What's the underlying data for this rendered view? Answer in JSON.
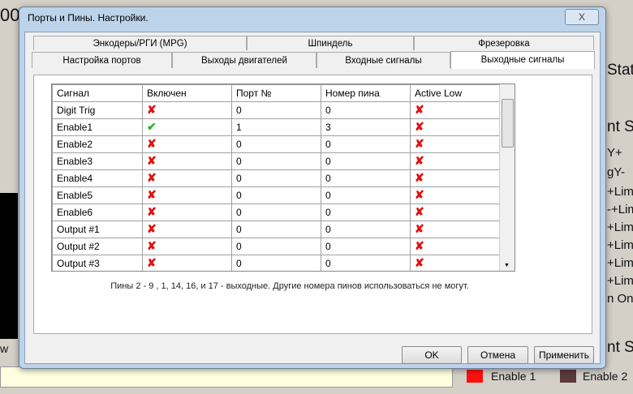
{
  "background": {
    "left_fragment": "00",
    "right_labels": [
      "Stat",
      "nt St",
      "Y+",
      "gY-",
      "+Lim",
      "-+Lim",
      "+Lim",
      "+Lim",
      "+Lim",
      "+Lim",
      "n On",
      "nt St"
    ],
    "left_button": "w",
    "leds": [
      {
        "label": "Enable 1",
        "color": "#ff1010"
      },
      {
        "label": "Enable 2",
        "color": "#5a3a3a"
      }
    ]
  },
  "dialog": {
    "title": "Порты и Пины.  Настройки.",
    "close": "X",
    "tabs_row1": [
      "Энкодеры/РГИ (MPG)",
      "Шпиндель",
      "Фрезеровка"
    ],
    "tabs_row2": [
      "Настройка портов",
      "Выходы двигателей",
      "Входные сигналы",
      "Выходные сигналы"
    ],
    "active_tab": "Выходные сигналы",
    "table": {
      "headers": [
        "Сигнал",
        "Включен",
        "Порт №",
        "Номер пина",
        "Active Low"
      ],
      "rows": [
        {
          "signal": "Digit  Trig",
          "enabled": false,
          "port": "0",
          "pin": "0",
          "active_low": false
        },
        {
          "signal": "Enable1",
          "enabled": true,
          "port": "1",
          "pin": "3",
          "active_low": false
        },
        {
          "signal": "Enable2",
          "enabled": false,
          "port": "0",
          "pin": "0",
          "active_low": false
        },
        {
          "signal": "Enable3",
          "enabled": false,
          "port": "0",
          "pin": "0",
          "active_low": false
        },
        {
          "signal": "Enable4",
          "enabled": false,
          "port": "0",
          "pin": "0",
          "active_low": false
        },
        {
          "signal": "Enable5",
          "enabled": false,
          "port": "0",
          "pin": "0",
          "active_low": false
        },
        {
          "signal": "Enable6",
          "enabled": false,
          "port": "0",
          "pin": "0",
          "active_low": false
        },
        {
          "signal": "Output #1",
          "enabled": false,
          "port": "0",
          "pin": "0",
          "active_low": false
        },
        {
          "signal": "Output #2",
          "enabled": false,
          "port": "0",
          "pin": "0",
          "active_low": false
        },
        {
          "signal": "Output #3",
          "enabled": false,
          "port": "0",
          "pin": "0",
          "active_low": false
        }
      ]
    },
    "note": "Пины 2 - 9 , 1, 14, 16, и 17 - выходные. Другие номера пинов использоваться не могут.",
    "buttons": {
      "ok": "OK",
      "cancel": "Отмена",
      "apply": "Применить"
    }
  }
}
